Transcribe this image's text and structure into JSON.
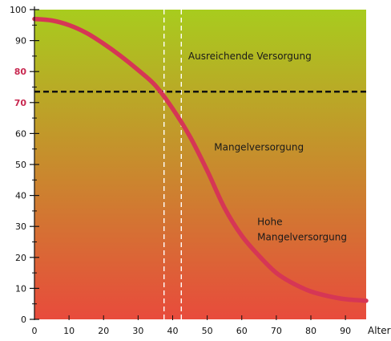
{
  "chart_data": {
    "type": "line",
    "xlabel": "Alter",
    "ylabel": "",
    "xlim": [
      0,
      96
    ],
    "ylim": [
      0,
      100
    ],
    "x_ticks": [
      "0",
      "10",
      "20",
      "30",
      "40",
      "50",
      "60",
      "70",
      "80",
      "90"
    ],
    "y_ticks": [
      "0",
      "10",
      "20",
      "30",
      "40",
      "50",
      "60",
      "70",
      "80",
      "90",
      "100"
    ],
    "highlighted_y_ticks": [
      "70",
      "80"
    ],
    "background_gradient": {
      "top_color": "#a8cc1e",
      "bottom_color": "#e84b3c"
    },
    "colors": {
      "curve": "#d63655",
      "highlight_tick": "#c82850",
      "threshold_line": "#111111",
      "vertical_markers": "#ffffff"
    },
    "threshold_line_y": 73.5,
    "vertical_markers_x": [
      37.5,
      42.5
    ],
    "series": [
      {
        "x": [
          0,
          5,
          10,
          15,
          20,
          25,
          30,
          35,
          40,
          45,
          50,
          55,
          60,
          65,
          70,
          75,
          80,
          85,
          90,
          96
        ],
        "values": [
          97,
          96.5,
          95,
          92.5,
          89,
          85,
          80.5,
          75.5,
          68,
          59,
          48,
          36,
          27,
          20.5,
          15,
          11.5,
          9,
          7.5,
          6.5,
          6
        ]
      }
    ],
    "annotations": [
      "Ausreichende Versorgung",
      "Mangelversorgung",
      "Hohe",
      "Mangelversorgung"
    ]
  }
}
